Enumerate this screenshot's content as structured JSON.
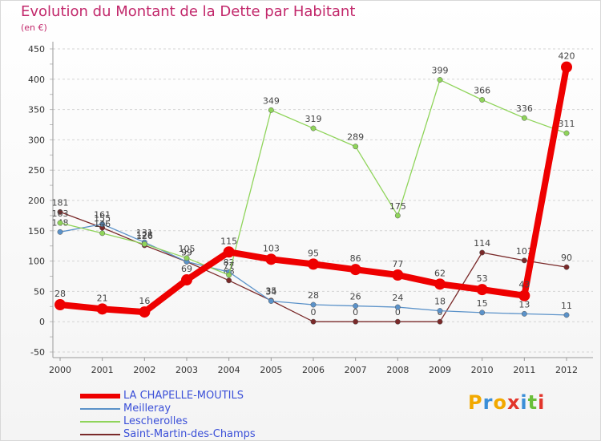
{
  "header": {
    "title": "Evolution du Montant de la Dette par Habitant",
    "unit": "(en €)"
  },
  "chart_data": {
    "type": "line",
    "title": "Evolution du Montant de la Dette par Habitant",
    "ylabel": "(en €)",
    "xlabel": "",
    "x": [
      "2000",
      "2001",
      "2002",
      "2003",
      "2004",
      "2005",
      "2006",
      "2007",
      "2008",
      "2009",
      "2010",
      "2011",
      "2012"
    ],
    "ylim": [
      -50,
      450
    ],
    "yticks": [
      "-50",
      "0",
      "50",
      "100",
      "150",
      "200",
      "250",
      "300",
      "350",
      "400",
      "450"
    ],
    "grid": "horizontal-dashed",
    "legend_position": "bottom-left",
    "series": [
      {
        "name": "Saint-Martin-des-Champs",
        "color": "#7a2a2a",
        "values": [
          181,
          155,
          126,
          99,
          68,
          35,
          0,
          0,
          0,
          0,
          114,
          101,
          90
        ],
        "labels": [
          "181",
          "155",
          "126",
          "99",
          "68",
          "35",
          "0",
          "0",
          "0",
          "0",
          "114",
          "101",
          "90"
        ]
      },
      {
        "name": "Meilleray",
        "color": "#5b92c9",
        "values": [
          148,
          161,
          131,
          99,
          82,
          34,
          28,
          26,
          24,
          18,
          15,
          13,
          11
        ],
        "labels": [
          "148",
          "161",
          "131",
          "99",
          "82",
          "34",
          "28",
          "26",
          "24",
          "18",
          "15",
          "13",
          "11"
        ]
      },
      {
        "name": "Lescherolles",
        "color": "#8fd45a",
        "values": [
          163,
          146,
          128,
          105,
          77,
          349,
          319,
          289,
          175,
          399,
          366,
          336,
          311
        ],
        "labels": [
          "163",
          "146",
          "128",
          "105",
          "77",
          "349",
          "319",
          "289",
          "175",
          "399",
          "366",
          "336",
          "311"
        ]
      },
      {
        "name": "LA CHAPELLE-MOUTILS",
        "color": "#ee0000",
        "values": [
          28,
          21,
          16,
          69,
          115,
          103,
          95,
          86,
          77,
          62,
          53,
          43,
          420
        ],
        "labels": [
          "28",
          "21",
          "16",
          "69",
          "115",
          "103",
          "95",
          "86",
          "77",
          "62",
          "53",
          "43",
          "420"
        ]
      }
    ]
  },
  "legend": {
    "items": [
      {
        "label": "LA CHAPELLE-MOUTILS",
        "color": "#ee0000"
      },
      {
        "label": "Meilleray",
        "color": "#5b92c9"
      },
      {
        "label": "Lescherolles",
        "color": "#8fd45a"
      },
      {
        "label": "Saint-Martin-des-Champs",
        "color": "#7a2a2a"
      }
    ]
  },
  "logo": {
    "letters": [
      "P",
      "r",
      "o",
      "x",
      "i",
      "t",
      "i"
    ],
    "colors": [
      "#f2a900",
      "#3a8ed8",
      "#f2a900",
      "#e2352b",
      "#3a8ed8",
      "#6abf3a",
      "#e2352b"
    ]
  }
}
